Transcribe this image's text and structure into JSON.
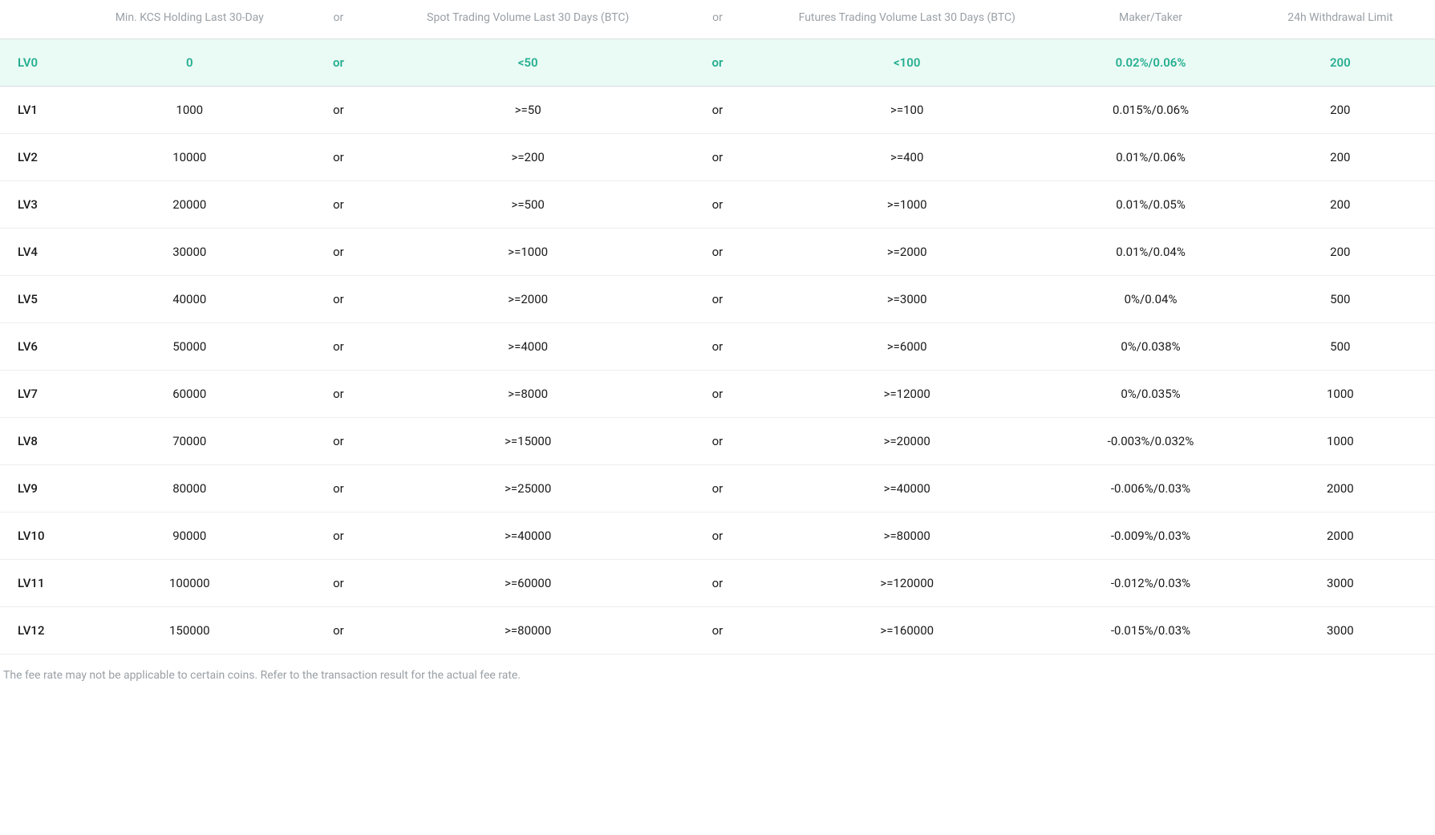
{
  "table": {
    "type": "table",
    "colors": {
      "background": "#ffffff",
      "header_text": "#9aa0a6",
      "body_text": "#1a1a1a",
      "highlight_text": "#24ae8f",
      "highlight_bg": "#eafaf5",
      "row_border": "#eceef0",
      "header_border": "#d9dde1",
      "footnote_text": "#9aa0a6"
    },
    "font_sizes": {
      "header": 14,
      "body": 15,
      "footnote": 14
    },
    "columns": {
      "level": {
        "label": "",
        "width_pct": 6,
        "align": "left"
      },
      "kcs": {
        "label": "Min. KCS Holding Last 30-Day",
        "width_pct": 16,
        "align": "center"
      },
      "or1": {
        "label": "or",
        "width_pct": 6,
        "align": "center"
      },
      "spot": {
        "label": "Spot Trading Volume Last 30 Days (BTC)",
        "width_pct": 22,
        "align": "center"
      },
      "or2": {
        "label": "or",
        "width_pct": 6,
        "align": "center"
      },
      "futures": {
        "label": "Futures Trading Volume Last 30 Days (BTC)",
        "width_pct": 22,
        "align": "center"
      },
      "fee": {
        "label": "Maker/Taker",
        "width_pct": 14,
        "align": "center"
      },
      "wd": {
        "label": "24h Withdrawal Limit",
        "width_pct": 14,
        "align": "center"
      }
    },
    "or_label": "or",
    "rows": [
      {
        "level": "LV0",
        "kcs": "0",
        "spot": "<50",
        "futures": "<100",
        "fee": "0.02%/0.06%",
        "wd": "200",
        "highlight": true
      },
      {
        "level": "LV1",
        "kcs": "1000",
        "spot": ">=50",
        "futures": ">=100",
        "fee": "0.015%/0.06%",
        "wd": "200",
        "highlight": false
      },
      {
        "level": "LV2",
        "kcs": "10000",
        "spot": ">=200",
        "futures": ">=400",
        "fee": "0.01%/0.06%",
        "wd": "200",
        "highlight": false
      },
      {
        "level": "LV3",
        "kcs": "20000",
        "spot": ">=500",
        "futures": ">=1000",
        "fee": "0.01%/0.05%",
        "wd": "200",
        "highlight": false
      },
      {
        "level": "LV4",
        "kcs": "30000",
        "spot": ">=1000",
        "futures": ">=2000",
        "fee": "0.01%/0.04%",
        "wd": "200",
        "highlight": false
      },
      {
        "level": "LV5",
        "kcs": "40000",
        "spot": ">=2000",
        "futures": ">=3000",
        "fee": "0%/0.04%",
        "wd": "500",
        "highlight": false
      },
      {
        "level": "LV6",
        "kcs": "50000",
        "spot": ">=4000",
        "futures": ">=6000",
        "fee": "0%/0.038%",
        "wd": "500",
        "highlight": false
      },
      {
        "level": "LV7",
        "kcs": "60000",
        "spot": ">=8000",
        "futures": ">=12000",
        "fee": "0%/0.035%",
        "wd": "1000",
        "highlight": false
      },
      {
        "level": "LV8",
        "kcs": "70000",
        "spot": ">=15000",
        "futures": ">=20000",
        "fee": "-0.003%/0.032%",
        "wd": "1000",
        "highlight": false
      },
      {
        "level": "LV9",
        "kcs": "80000",
        "spot": ">=25000",
        "futures": ">=40000",
        "fee": "-0.006%/0.03%",
        "wd": "2000",
        "highlight": false
      },
      {
        "level": "LV10",
        "kcs": "90000",
        "spot": ">=40000",
        "futures": ">=80000",
        "fee": "-0.009%/0.03%",
        "wd": "2000",
        "highlight": false
      },
      {
        "level": "LV11",
        "kcs": "100000",
        "spot": ">=60000",
        "futures": ">=120000",
        "fee": "-0.012%/0.03%",
        "wd": "3000",
        "highlight": false
      },
      {
        "level": "LV12",
        "kcs": "150000",
        "spot": ">=80000",
        "futures": ">=160000",
        "fee": "-0.015%/0.03%",
        "wd": "3000",
        "highlight": false
      }
    ],
    "footnote": "The fee rate may not be applicable to certain coins. Refer to the transaction result for the actual fee rate."
  }
}
